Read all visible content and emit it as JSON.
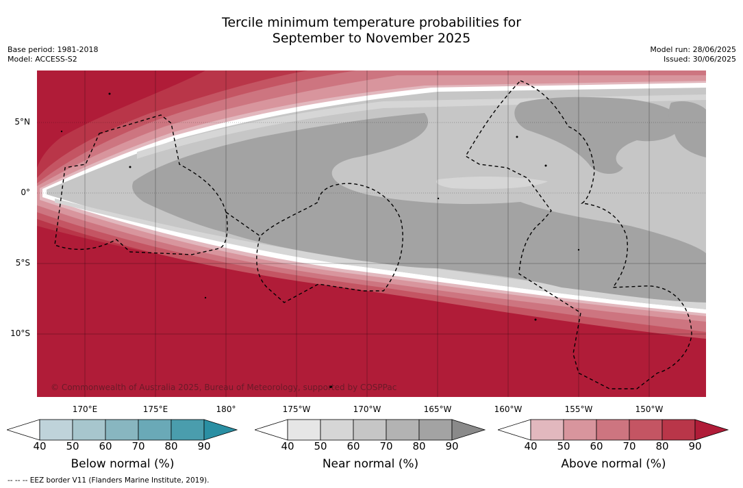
{
  "title_line1": "Tercile minimum temperature probabilities for",
  "title_line2": "September to November 2025",
  "base_period": "Base period: 1981-2018",
  "model": "Model: ACCESS-S2",
  "model_run": "Model run: 28/06/2025",
  "issued": "Issued: 30/06/2025",
  "copyright": "© Commonwealth of Australia 2025, Bureau of Meteorology, supported by COSPPac",
  "lat_labels": [
    "5°N",
    "0°",
    "5°S",
    "10°S"
  ],
  "lon_labels": [
    "170°E",
    "175°E",
    "180°",
    "175°W",
    "170°W",
    "165°W",
    "160°W",
    "155°W",
    "150°W"
  ],
  "colorbars": [
    {
      "title": "Below normal (%)",
      "ticks": [
        "40",
        "50",
        "60",
        "70",
        "80",
        "90"
      ],
      "colors": [
        "#ffffff",
        "#bfd3da",
        "#a7c6cd",
        "#88b6c0",
        "#6aa9b7",
        "#4a9dad",
        "#2a8fa3"
      ]
    },
    {
      "title": "Near normal (%)",
      "ticks": [
        "40",
        "50",
        "60",
        "70",
        "80",
        "90"
      ],
      "colors": [
        "#ffffff",
        "#e6e6e6",
        "#d6d6d6",
        "#c6c6c6",
        "#b3b3b3",
        "#a3a3a3",
        "#8a8a8a"
      ]
    },
    {
      "title": "Above normal (%)",
      "ticks": [
        "40",
        "50",
        "60",
        "70",
        "80",
        "90"
      ],
      "colors": [
        "#ffffff",
        "#e2b8be",
        "#d8959d",
        "#cd7580",
        "#c45563",
        "#b93649",
        "#b01c38"
      ]
    }
  ],
  "eez_note": "--  --  -- EEZ border V11 (Flanders Marine Institute, 2019)."
}
